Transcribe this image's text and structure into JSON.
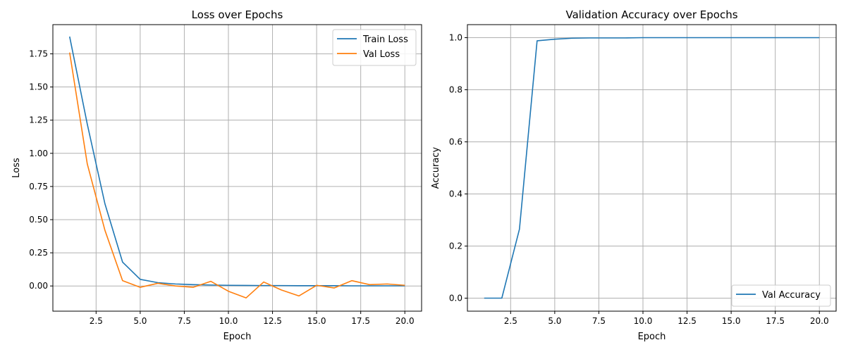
{
  "chart_data": [
    {
      "type": "line",
      "title": "Loss over Epochs",
      "xlabel": "Epoch",
      "ylabel": "Loss",
      "xlim": [
        0.05,
        20.95
      ],
      "ylim": [
        -0.19,
        1.97
      ],
      "xticks": [
        2.5,
        5.0,
        7.5,
        10.0,
        12.5,
        15.0,
        17.5,
        20.0
      ],
      "xtick_labels": [
        "2.5",
        "5.0",
        "7.5",
        "10.0",
        "12.5",
        "15.0",
        "17.5",
        "20.0"
      ],
      "yticks": [
        0.0,
        0.25,
        0.5,
        0.75,
        1.0,
        1.25,
        1.5,
        1.75
      ],
      "ytick_labels": [
        "0.00",
        "0.25",
        "0.50",
        "0.75",
        "1.00",
        "1.25",
        "1.50",
        "1.75"
      ],
      "grid": true,
      "legend_position": "top-right",
      "x": [
        1,
        2,
        3,
        4,
        5,
        6,
        7,
        8,
        9,
        10,
        11,
        12,
        13,
        14,
        15,
        16,
        17,
        18,
        19,
        20
      ],
      "series": [
        {
          "name": "Train Loss",
          "color": "#1f77b4",
          "values": [
            1.88,
            1.22,
            0.62,
            0.18,
            0.05,
            0.025,
            0.015,
            0.01,
            0.007,
            0.005,
            0.004,
            0.003,
            0.003,
            0.002,
            0.002,
            0.002,
            0.001,
            0.001,
            0.001,
            0.001
          ]
        },
        {
          "name": "Val Loss",
          "color": "#ff7f0e",
          "values": [
            1.76,
            0.92,
            0.42,
            0.04,
            -0.01,
            0.02,
            0.0,
            -0.01,
            0.035,
            -0.04,
            -0.09,
            0.03,
            -0.03,
            -0.075,
            0.005,
            -0.015,
            0.04,
            0.01,
            0.015,
            0.005
          ]
        }
      ]
    },
    {
      "type": "line",
      "title": "Validation Accuracy over Epochs",
      "xlabel": "Epoch",
      "ylabel": "Accuracy",
      "xlim": [
        0.05,
        20.95
      ],
      "ylim": [
        -0.05,
        1.05
      ],
      "xticks": [
        2.5,
        5.0,
        7.5,
        10.0,
        12.5,
        15.0,
        17.5,
        20.0
      ],
      "xtick_labels": [
        "2.5",
        "5.0",
        "7.5",
        "10.0",
        "12.5",
        "15.0",
        "17.5",
        "20.0"
      ],
      "yticks": [
        0.0,
        0.2,
        0.4,
        0.6,
        0.8,
        1.0
      ],
      "ytick_labels": [
        "0.0",
        "0.2",
        "0.4",
        "0.6",
        "0.8",
        "1.0"
      ],
      "grid": true,
      "legend_position": "bottom-right",
      "x": [
        1,
        2,
        3,
        4,
        5,
        6,
        7,
        8,
        9,
        10,
        11,
        12,
        13,
        14,
        15,
        16,
        17,
        18,
        19,
        20
      ],
      "series": [
        {
          "name": "Val Accuracy",
          "color": "#1f77b4",
          "values": [
            0.0,
            0.0,
            0.265,
            0.988,
            0.994,
            0.998,
            0.999,
            0.999,
            0.999,
            1.0,
            1.0,
            1.0,
            1.0,
            1.0,
            1.0,
            1.0,
            1.0,
            1.0,
            1.0,
            1.0
          ]
        }
      ]
    }
  ]
}
